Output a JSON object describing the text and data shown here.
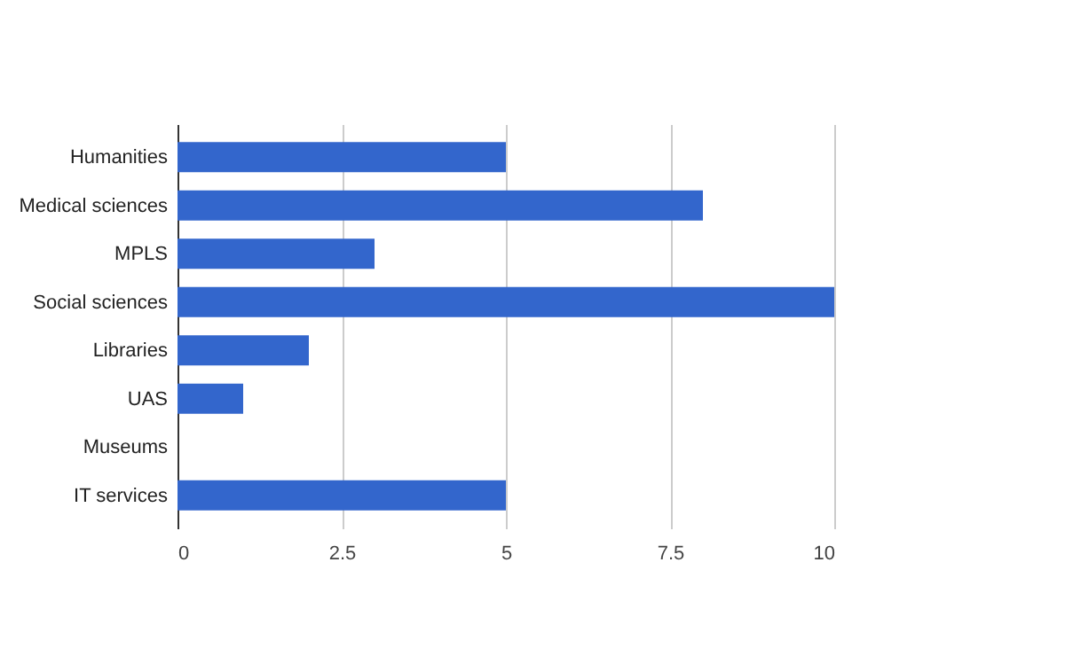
{
  "chart_data": {
    "type": "bar",
    "orientation": "horizontal",
    "categories": [
      "Humanities",
      "Medical sciences",
      "MPLS",
      "Social sciences",
      "Libraries",
      "UAS",
      "Museums",
      "IT services"
    ],
    "values": [
      5,
      8,
      3,
      10,
      2,
      1,
      0,
      5
    ],
    "color": "#3366cc",
    "xlim": [
      0,
      10
    ],
    "xticks": [
      0,
      2.5,
      5,
      7.5,
      10
    ],
    "grid": "x"
  }
}
